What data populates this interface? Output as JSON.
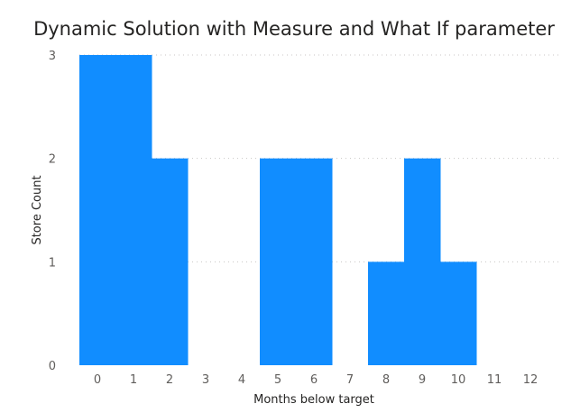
{
  "chart_data": {
    "type": "bar",
    "title": "Dynamic Solution with Measure and What If parameter",
    "xlabel": "Months below target",
    "ylabel": "Store Count",
    "categories": [
      "0",
      "1",
      "2",
      "3",
      "4",
      "5",
      "6",
      "7",
      "8",
      "9",
      "10",
      "11",
      "12"
    ],
    "values": [
      3,
      3,
      2,
      0,
      0,
      2,
      2,
      0,
      1,
      2,
      1,
      0,
      0
    ],
    "ylim": [
      0,
      3
    ],
    "yticks": [
      "0",
      "1",
      "2",
      "3"
    ],
    "grid": true,
    "bar_color": "#118DFF"
  }
}
